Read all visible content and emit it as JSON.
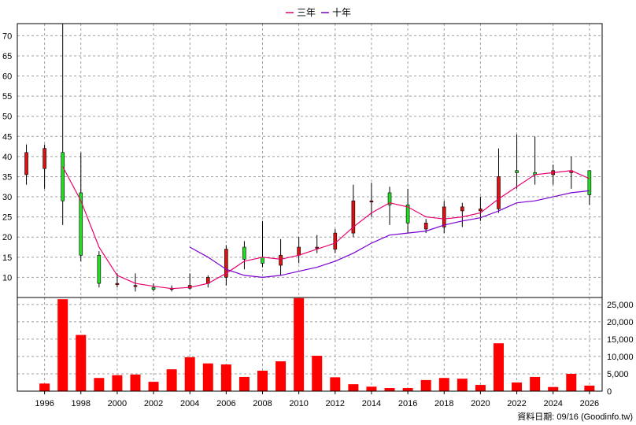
{
  "legend": {
    "items": [
      {
        "label": "三年",
        "color": "#e8006e"
      },
      {
        "label": "十年",
        "color": "#7a00d0"
      }
    ]
  },
  "source_label": "資料日期: 09/16 (Goodinfo.tw)",
  "colors": {
    "up": "#dd1111",
    "down": "#22dd22",
    "volume": "#ff0000",
    "grid": "#a0a0a0"
  },
  "chart_data": [
    {
      "type": "candlestick",
      "title": "",
      "ylim": [
        5,
        73
      ],
      "yticks": [
        10,
        15,
        20,
        25,
        30,
        35,
        40,
        45,
        50,
        55,
        60,
        65,
        70
      ],
      "x": [
        1995,
        1996,
        1997,
        1998,
        1999,
        2000,
        2001,
        2002,
        2003,
        2004,
        2005,
        2006,
        2007,
        2008,
        2009,
        2010,
        2011,
        2012,
        2013,
        2014,
        2015,
        2016,
        2017,
        2018,
        2019,
        2020,
        2021,
        2022,
        2023,
        2024,
        2025,
        2026
      ],
      "xticks": [
        1996,
        1998,
        2000,
        2002,
        2004,
        2006,
        2008,
        2010,
        2012,
        2014,
        2016,
        2018,
        2020,
        2022,
        2024,
        2026
      ],
      "open": [
        35.5,
        37,
        41,
        31,
        15.5,
        8.5,
        8,
        7.5,
        7,
        7.3,
        8.5,
        10,
        17.5,
        15,
        13,
        15.5,
        17.5,
        17,
        21,
        29,
        31,
        28,
        22,
        22.5,
        26.5,
        26.5,
        27,
        36.5,
        36,
        35.5,
        36,
        36.5
      ],
      "high": [
        43,
        43,
        73,
        41,
        16.5,
        11,
        11,
        8.5,
        8,
        11,
        10.5,
        18,
        19,
        24,
        19.5,
        20,
        20.5,
        22,
        33,
        33.5,
        32.5,
        32,
        24.5,
        29,
        28.5,
        30,
        42,
        45.5,
        45,
        38,
        40,
        36.5
      ],
      "low": [
        33,
        32,
        23,
        14,
        7.5,
        7.5,
        6.5,
        6.5,
        6.5,
        7,
        7.5,
        8,
        12,
        12.5,
        10.5,
        13.5,
        16,
        16,
        20,
        25,
        23,
        21,
        21,
        21,
        22.5,
        24,
        26,
        32,
        33,
        33,
        32,
        28
      ],
      "close": [
        41,
        42,
        29,
        15.5,
        8.5,
        8.5,
        8,
        7,
        7.3,
        8,
        10,
        17,
        14.5,
        13.5,
        15.5,
        17.5,
        17.5,
        21,
        29,
        29,
        28,
        23.5,
        23.5,
        27.5,
        27.5,
        27,
        35,
        36,
        35.5,
        36.5,
        36.5,
        30.5
      ],
      "series": [
        {
          "name": "三年",
          "x": [
            1997,
            1998,
            1999,
            2000,
            2001,
            2002,
            2003,
            2004,
            2005,
            2006,
            2007,
            2008,
            2009,
            2010,
            2011,
            2012,
            2013,
            2014,
            2015,
            2016,
            2017,
            2018,
            2019,
            2020,
            2021,
            2022,
            2023,
            2024,
            2025,
            2026
          ],
          "values": [
            37.5,
            29,
            17.5,
            10.5,
            8.5,
            7.8,
            7.2,
            7.5,
            8.5,
            11,
            14,
            15,
            14.5,
            15.5,
            17,
            18.5,
            22.5,
            26,
            28.5,
            27.5,
            25,
            24.5,
            25,
            26,
            29.5,
            32.5,
            35.5,
            36,
            36.5,
            34.5
          ]
        },
        {
          "name": "十年",
          "x": [
            2004,
            2005,
            2006,
            2007,
            2008,
            2009,
            2010,
            2011,
            2012,
            2013,
            2014,
            2015,
            2016,
            2017,
            2018,
            2019,
            2020,
            2021,
            2022,
            2023,
            2024,
            2025,
            2026
          ],
          "values": [
            17.5,
            15,
            12,
            10.5,
            10,
            10.5,
            11.5,
            12.5,
            14,
            16,
            18.5,
            20.5,
            21,
            21.5,
            23,
            24,
            24.8,
            26.5,
            28.5,
            29,
            30,
            31,
            31.5
          ]
        }
      ]
    },
    {
      "type": "bar",
      "title": "",
      "ylim": [
        0,
        27000
      ],
      "yticks": [
        0,
        5000,
        10000,
        15000,
        20000,
        25000
      ],
      "ytick_labels": [
        "0",
        "5,000",
        "10,000",
        "15,000",
        "20,000",
        "25,000"
      ],
      "x": [
        1995,
        1996,
        1997,
        1998,
        1999,
        2000,
        2001,
        2002,
        2003,
        2004,
        2005,
        2006,
        2007,
        2008,
        2009,
        2010,
        2011,
        2012,
        2013,
        2014,
        2015,
        2016,
        2017,
        2018,
        2019,
        2020,
        2021,
        2022,
        2023,
        2024,
        2025,
        2026
      ],
      "values": [
        0,
        2200,
        26500,
        16200,
        3800,
        4600,
        4800,
        2700,
        6300,
        9800,
        8000,
        7700,
        4100,
        5900,
        8600,
        26800,
        10200,
        4000,
        2000,
        1300,
        900,
        900,
        3200,
        3800,
        3600,
        1800,
        13800,
        2500,
        4100,
        1200,
        5000,
        1600
      ]
    }
  ]
}
